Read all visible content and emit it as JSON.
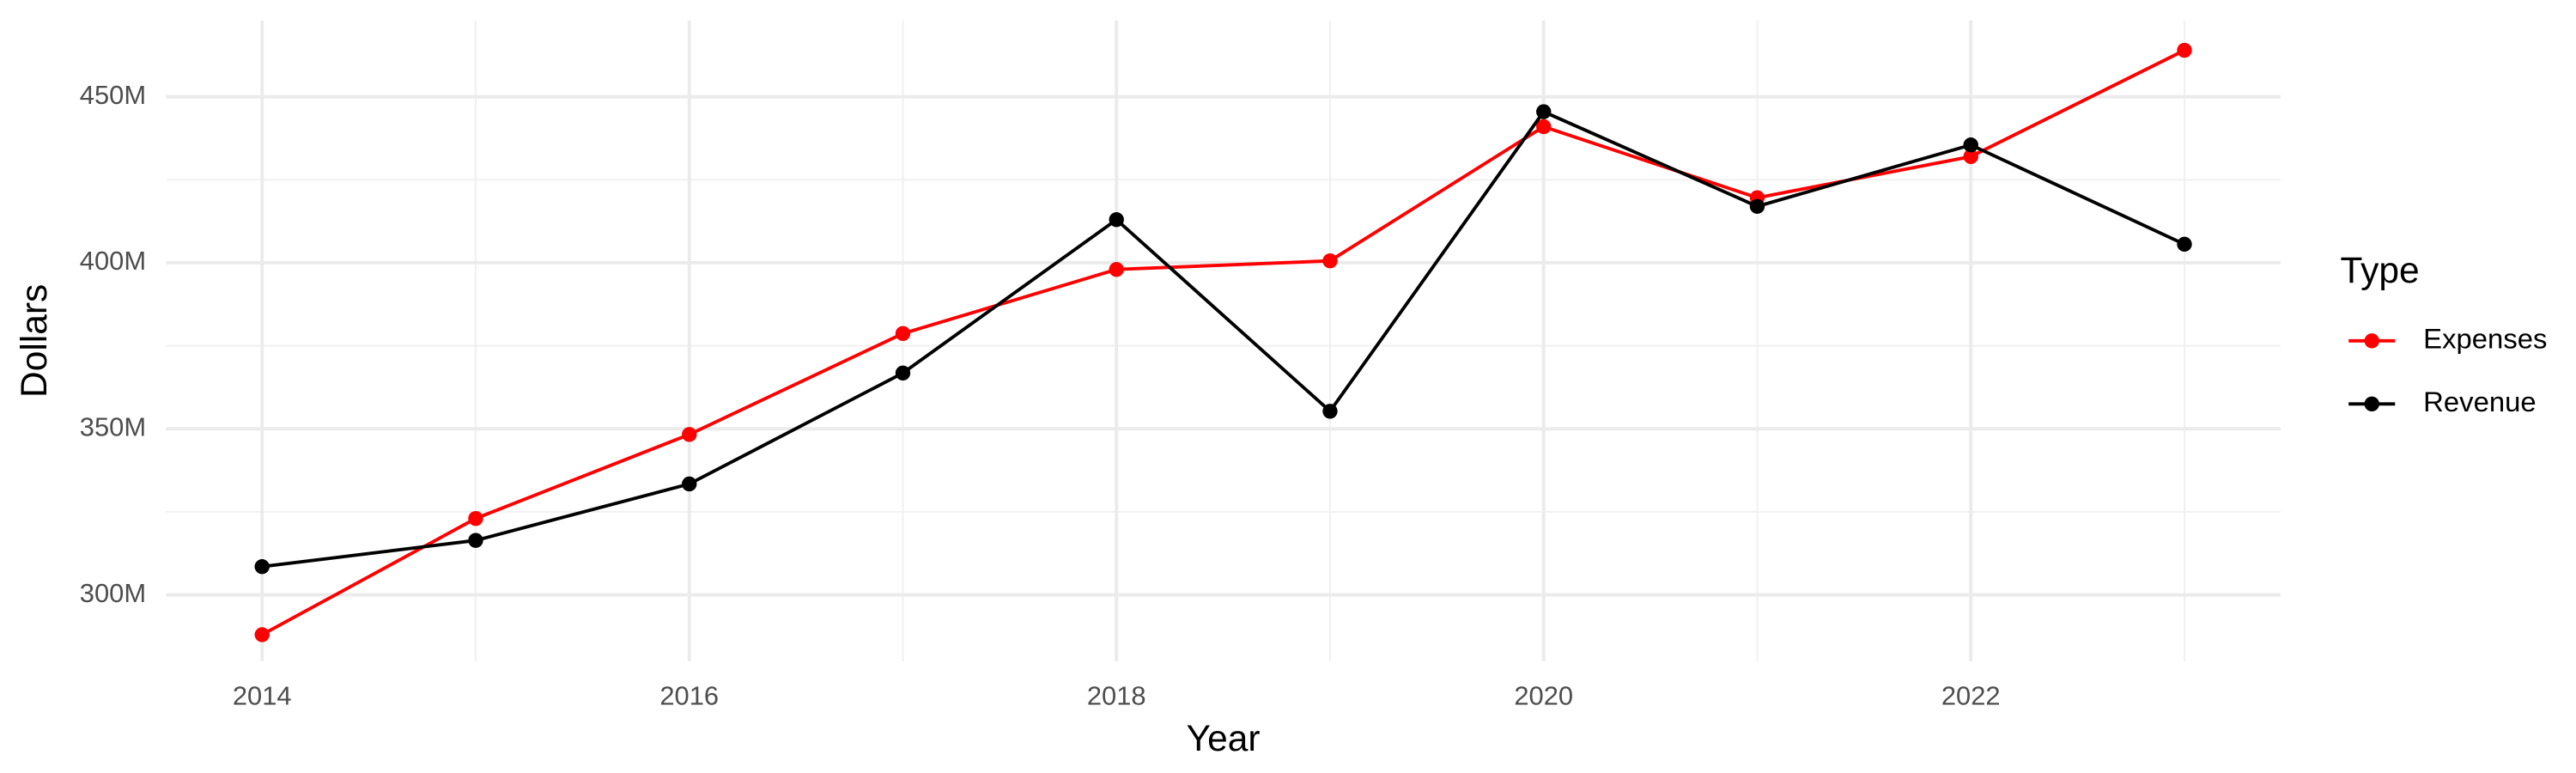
{
  "chart_data": {
    "type": "line",
    "x_label": "Year",
    "y_label": "Dollars",
    "legend_title": "Type",
    "x": [
      2014,
      2015,
      2016,
      2017,
      2018,
      2019,
      2020,
      2021,
      2022,
      2023
    ],
    "series": [
      {
        "name": "Expenses",
        "color": "#ff0000",
        "values": [
          288000000,
          323000000,
          348300000,
          378700000,
          398000000,
          400600000,
          441000000,
          419600000,
          432000000,
          464000000
        ]
      },
      {
        "name": "Revenue",
        "color": "#000000",
        "values": [
          308500000,
          316400000,
          333400000,
          366800000,
          413000000,
          355300000,
          445500000,
          417000000,
          435500000,
          405600000
        ]
      }
    ],
    "xlim": [
      2013.55,
      2023.45
    ],
    "xticks": [
      2014,
      2016,
      2018,
      2020,
      2022
    ],
    "ylim": [
      280000000,
      473000000
    ],
    "yticks": [
      {
        "value": 300000000,
        "label": "300M"
      },
      {
        "value": 350000000,
        "label": "350M"
      },
      {
        "value": 400000000,
        "label": "400M"
      },
      {
        "value": 450000000,
        "label": "450M"
      }
    ],
    "grid": true,
    "legend_position": "right"
  }
}
